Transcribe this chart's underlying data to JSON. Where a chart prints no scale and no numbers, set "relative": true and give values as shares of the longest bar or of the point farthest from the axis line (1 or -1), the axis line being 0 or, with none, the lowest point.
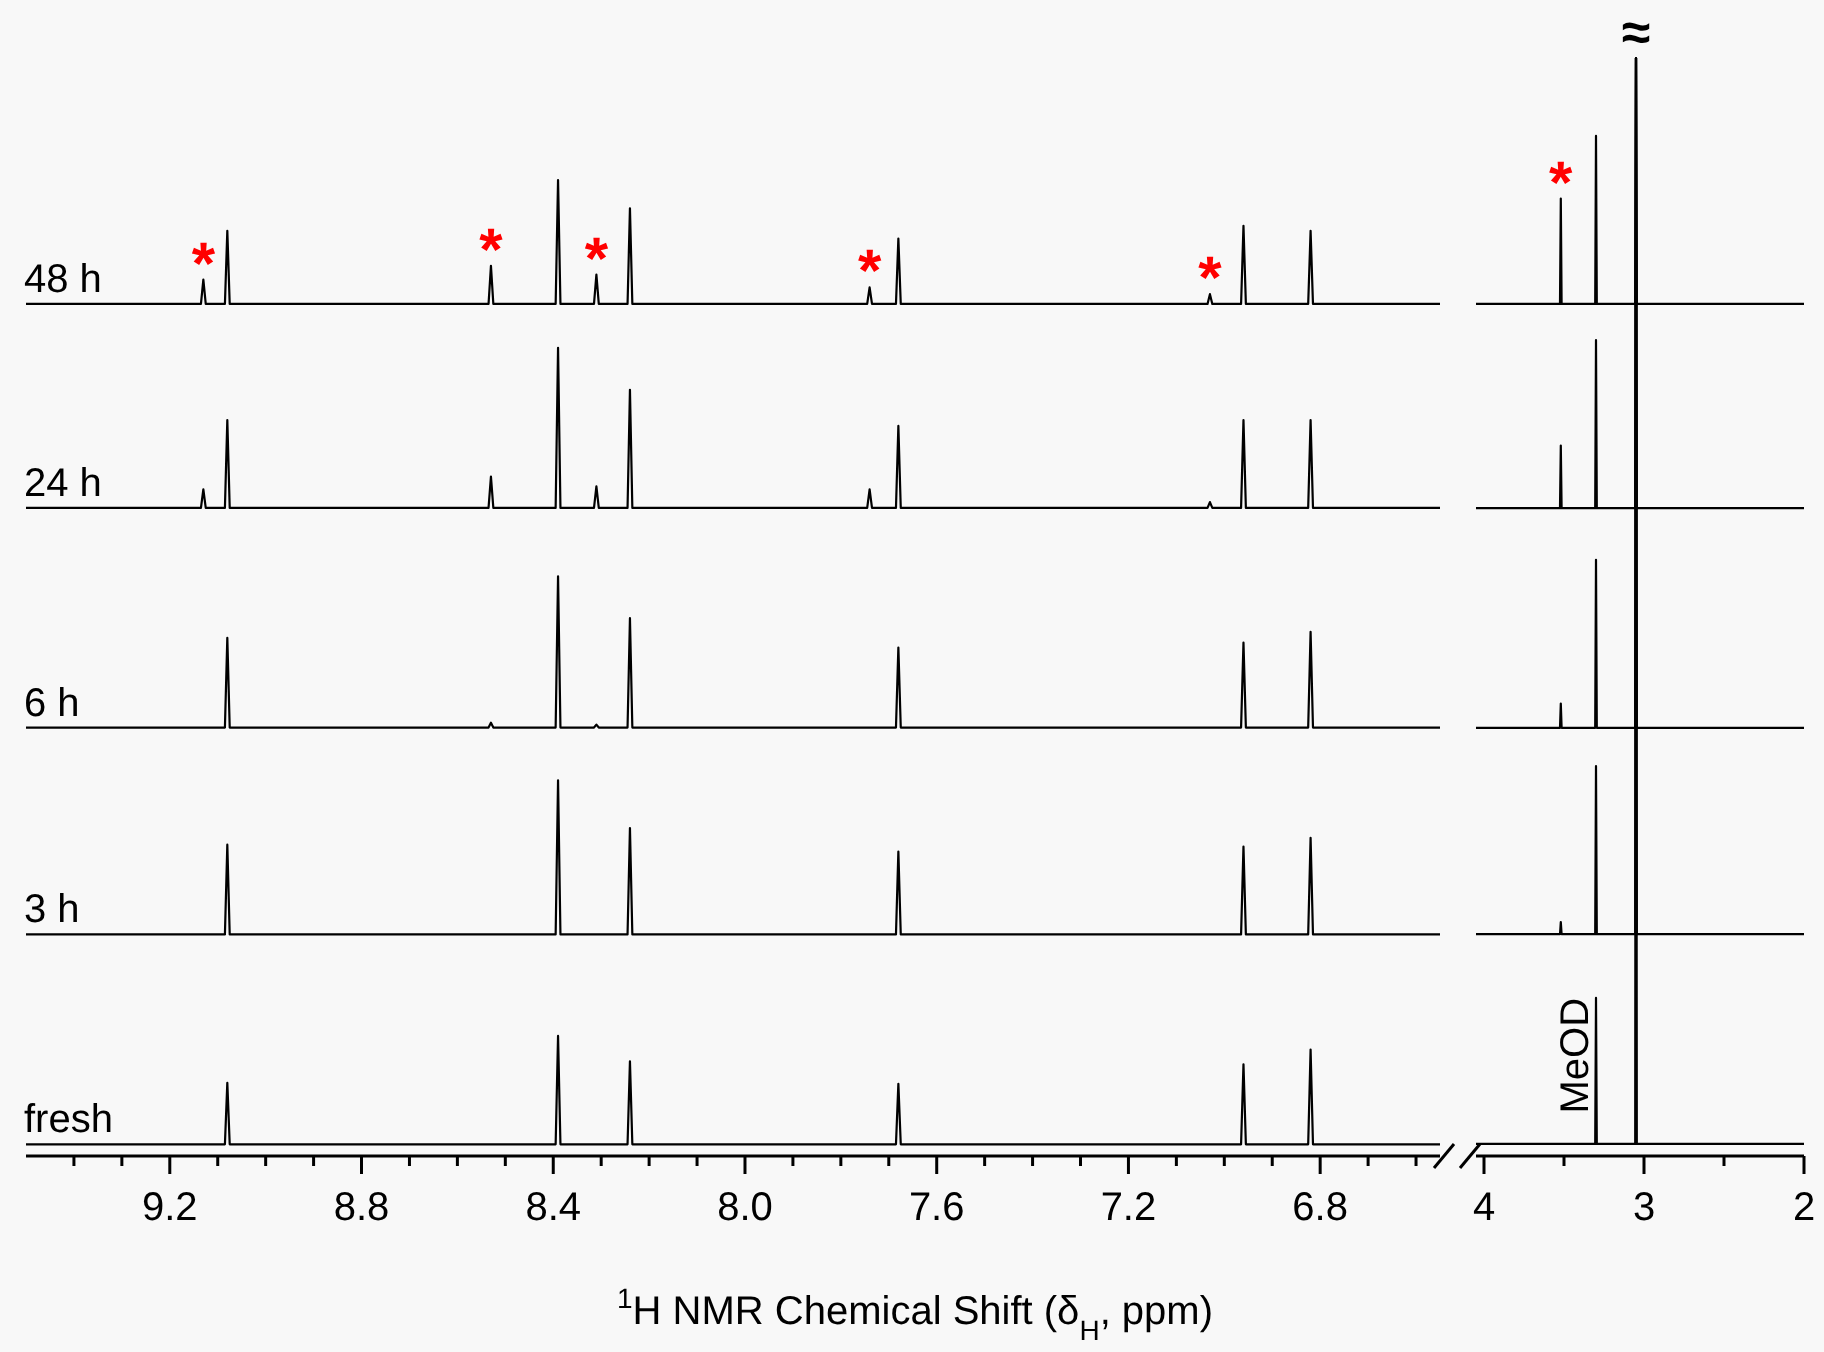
{
  "chart_data": [
    {
      "type": "line",
      "relative": true,
      "xlabel": "$^{1}$H NMR Chemical Shift (δ$_{H}$, ppm)",
      "xlim": [
        9.5,
        6.55
      ],
      "xticks": [
        {
          "value": 9.4,
          "label": null
        },
        {
          "value": 9.3,
          "label": null
        },
        9.2,
        {
          "value": 9.1,
          "label": null
        },
        {
          "value": 9.0,
          "label": null
        },
        {
          "value": 8.9,
          "label": null
        },
        8.8,
        {
          "value": 8.7,
          "label": null
        },
        {
          "value": 8.6,
          "label": null
        },
        {
          "value": 8.5,
          "label": null
        },
        8.4,
        {
          "value": 8.3,
          "label": null
        },
        {
          "value": 8.2,
          "label": null
        },
        {
          "value": 8.1,
          "label": null
        },
        {
          "value": 8.0,
          "label": "8.0"
        },
        {
          "value": 7.9,
          "label": null
        },
        {
          "value": 7.8,
          "label": null
        },
        {
          "value": 7.7,
          "label": null
        },
        7.6,
        {
          "value": 7.5,
          "label": null
        },
        {
          "value": 7.4,
          "label": null
        },
        {
          "value": 7.3,
          "label": null
        },
        7.2,
        {
          "value": 7.1,
          "label": null
        },
        {
          "value": 7.0,
          "label": null
        },
        {
          "value": 6.9,
          "label": null
        },
        6.8,
        {
          "value": 6.7,
          "label": null
        },
        {
          "value": 6.6,
          "label": null
        }
      ],
      "series": [
        {
          "name": "48 h",
          "color": "#000000",
          "x": [
            9.5,
            9.135,
            9.13,
            9.125,
            9.085,
            9.08,
            9.075,
            8.535,
            8.53,
            8.525,
            8.395,
            8.39,
            8.385,
            8.315,
            8.31,
            8.305,
            8.245,
            8.24,
            8.235,
            7.745,
            7.74,
            7.735,
            7.685,
            7.68,
            7.675,
            7.035,
            7.03,
            7.025,
            6.965,
            6.96,
            6.955,
            6.825,
            6.82,
            6.815,
            6.55
          ],
          "values": [
            0.873,
            0.873,
            0.898,
            0.873,
            0.873,
            0.948,
            0.873,
            0.873,
            0.912,
            0.873,
            0.873,
            1,
            0.873,
            0.873,
            0.903,
            0.873,
            0.873,
            0.971,
            0.873,
            0.873,
            0.89,
            0.873,
            0.873,
            0.94,
            0.873,
            0.873,
            0.883,
            0.873,
            0.873,
            0.953,
            0.873,
            0.873,
            0.948,
            0.873,
            0.873
          ]
        },
        {
          "name": "24 h",
          "color": "#000000",
          "x": [
            9.5,
            9.135,
            9.13,
            9.125,
            9.085,
            9.08,
            9.075,
            8.535,
            8.53,
            8.525,
            8.395,
            8.39,
            8.385,
            8.315,
            8.31,
            8.305,
            8.245,
            8.24,
            8.235,
            7.745,
            7.74,
            7.735,
            7.685,
            7.68,
            7.675,
            7.035,
            7.03,
            7.025,
            6.965,
            6.96,
            6.955,
            6.825,
            6.82,
            6.815,
            6.55
          ],
          "values": [
            0.664,
            0.664,
            0.683,
            0.664,
            0.664,
            0.754,
            0.664,
            0.664,
            0.696,
            0.664,
            0.664,
            0.828,
            0.664,
            0.664,
            0.686,
            0.664,
            0.664,
            0.785,
            0.664,
            0.664,
            0.683,
            0.664,
            0.664,
            0.748,
            0.664,
            0.664,
            0.67,
            0.664,
            0.664,
            0.754,
            0.664,
            0.664,
            0.754,
            0.664,
            0.664
          ]
        },
        {
          "name": "6 h",
          "color": "#000000",
          "x": [
            9.5,
            9.085,
            9.08,
            9.075,
            8.535,
            8.53,
            8.525,
            8.395,
            8.39,
            8.385,
            8.315,
            8.31,
            8.305,
            8.245,
            8.24,
            8.235,
            7.685,
            7.68,
            7.675,
            6.965,
            6.96,
            6.955,
            6.825,
            6.82,
            6.815,
            6.55
          ],
          "values": [
            0.439,
            0.439,
            0.531,
            0.439,
            0.439,
            0.444,
            0.439,
            0.439,
            0.594,
            0.439,
            0.439,
            0.442,
            0.439,
            0.439,
            0.551,
            0.439,
            0.439,
            0.521,
            0.439,
            0.439,
            0.526,
            0.439,
            0.439,
            0.537,
            0.439,
            0.439
          ]
        },
        {
          "name": "3 h",
          "color": "#000000",
          "x": [
            9.5,
            9.085,
            9.08,
            9.075,
            8.395,
            8.39,
            8.385,
            8.245,
            8.24,
            8.235,
            7.685,
            7.68,
            7.675,
            6.965,
            6.96,
            6.955,
            6.825,
            6.82,
            6.815,
            6.55
          ],
          "values": [
            0.227,
            0.227,
            0.319,
            0.227,
            0.227,
            0.385,
            0.227,
            0.227,
            0.336,
            0.227,
            0.227,
            0.312,
            0.227,
            0.227,
            0.317,
            0.227,
            0.227,
            0.326,
            0.227,
            0.227
          ]
        },
        {
          "name": "fresh",
          "color": "#000000",
          "x": [
            9.5,
            9.085,
            9.08,
            9.075,
            8.395,
            8.39,
            8.385,
            8.245,
            8.24,
            8.235,
            7.685,
            7.68,
            7.675,
            6.965,
            6.96,
            6.955,
            6.825,
            6.82,
            6.815,
            6.55
          ],
          "values": [
            0.012,
            0.012,
            0.075,
            0.012,
            0.012,
            0.123,
            0.012,
            0.012,
            0.097,
            0.012,
            0.012,
            0.074,
            0.012,
            0.012,
            0.094,
            0.012,
            0.012,
            0.109,
            0.012,
            0.012
          ]
        }
      ],
      "annotations": [
        {
          "text": "*",
          "x": 9.13,
          "y": 0.898
        },
        {
          "text": "*",
          "x": 8.53,
          "y": 0.912
        },
        {
          "text": "*",
          "x": 8.31,
          "y": 0.903
        },
        {
          "text": "*",
          "x": 7.74,
          "y": 0.89
        },
        {
          "text": "*",
          "x": 7.03,
          "y": 0.883
        }
      ]
    },
    {
      "type": "line",
      "relative": true,
      "xlim": [
        4.05,
        2
      ],
      "xticks": [
        4,
        {
          "value": 3.5,
          "label": null
        },
        3,
        {
          "value": 2.5,
          "label": null
        },
        2
      ],
      "series": [
        {
          "color": "#000000",
          "x": [
            4.05,
            3.525,
            3.52,
            3.515,
            3.305,
            3.3,
            3.295,
            3.055,
            3.05,
            3.045,
            2.0
          ],
          "values": [
            0.776,
            0.776,
            0.872,
            0.776,
            0.776,
            0.929,
            0.776,
            0.776,
            1,
            0.776,
            0.776
          ]
        },
        {
          "color": "#000000",
          "x": [
            4.05,
            3.525,
            3.52,
            3.515,
            3.305,
            3.3,
            3.295,
            3.055,
            3.05,
            3.045,
            2.0
          ],
          "values": [
            0.59,
            0.59,
            0.647,
            0.59,
            0.59,
            0.743,
            0.59,
            0.59,
            1,
            0.59,
            0.59
          ]
        },
        {
          "color": "#000000",
          "x": [
            4.05,
            3.525,
            3.52,
            3.515,
            3.305,
            3.3,
            3.295,
            3.055,
            3.05,
            3.045,
            2.0
          ],
          "values": [
            0.39,
            0.39,
            0.412,
            0.39,
            0.39,
            0.543,
            0.39,
            0.39,
            1,
            0.39,
            0.39
          ]
        },
        {
          "color": "#000000",
          "x": [
            4.05,
            3.525,
            3.52,
            3.515,
            3.305,
            3.3,
            3.295,
            3.055,
            3.05,
            3.045,
            2.0
          ],
          "values": [
            0.202,
            0.202,
            0.213,
            0.202,
            0.202,
            0.355,
            0.202,
            0.202,
            1,
            0.202,
            0.202
          ]
        },
        {
          "color": "#000000",
          "x": [
            4.05,
            3.305,
            3.3,
            3.295,
            3.055,
            3.05,
            3.045,
            2.0
          ],
          "values": [
            0.011,
            0.011,
            0.144,
            0.011,
            0.011,
            1,
            0.011,
            0.011
          ]
        }
      ],
      "annotations": [
        {
          "text": "*",
          "x": 3.52,
          "y": 0.872
        },
        {
          "text": "MeOD",
          "x": 3.3,
          "y": 0.144
        },
        {
          "text": "≈",
          "x": 3.05,
          "y": 1
        }
      ]
    }
  ]
}
